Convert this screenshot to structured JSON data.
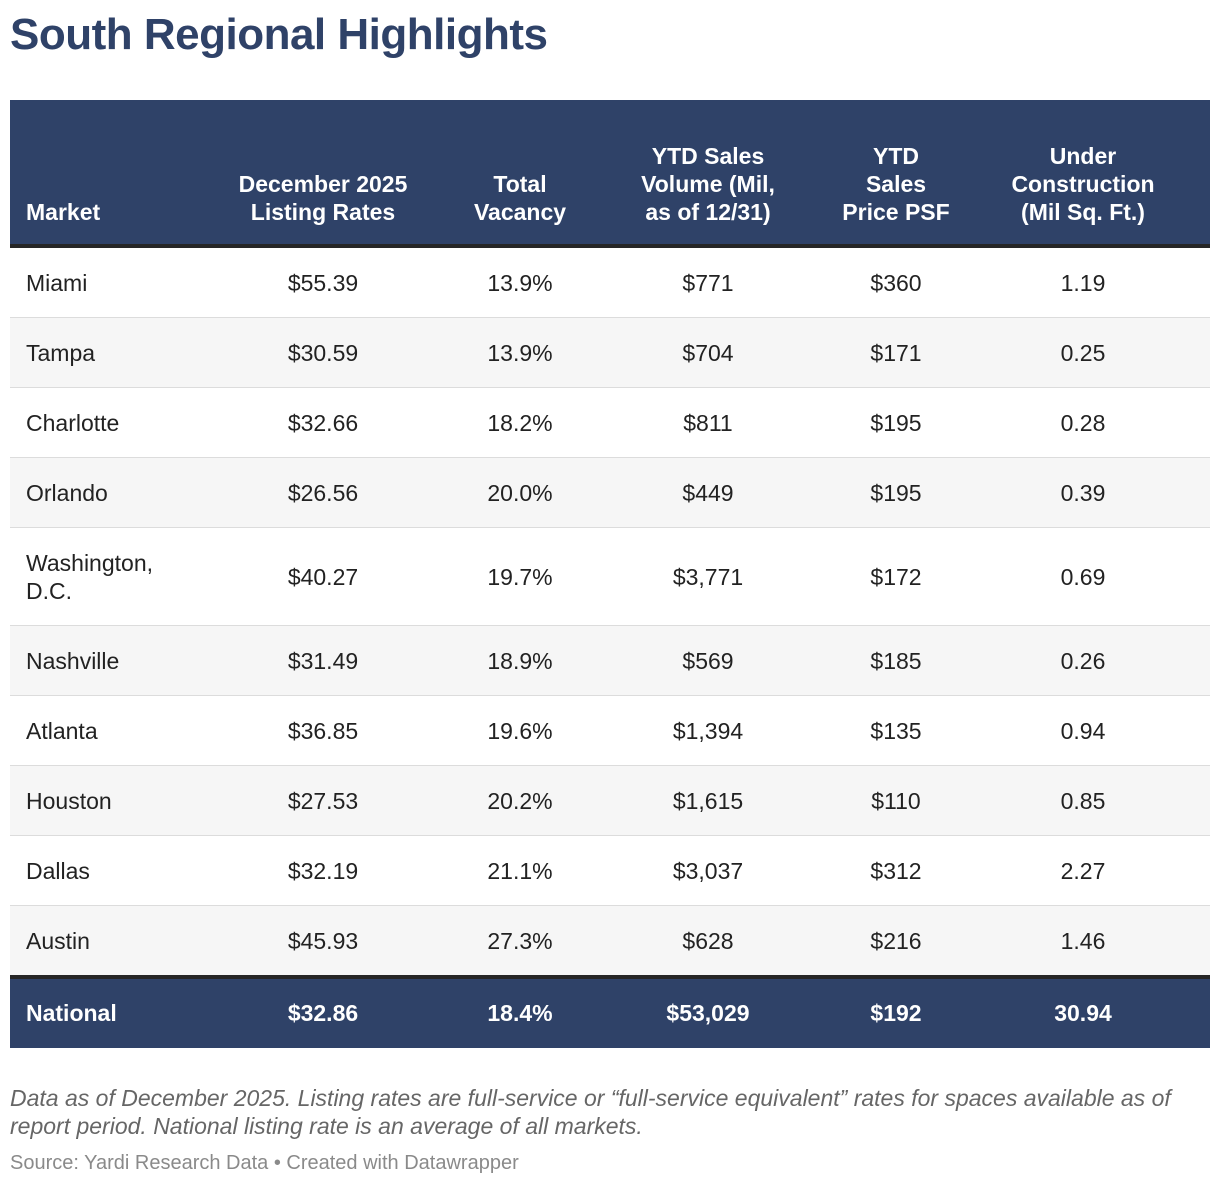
{
  "title": "South Regional Highlights",
  "chart_data": {
    "type": "table",
    "title": "South Regional Highlights",
    "columns": [
      "Market",
      "December 2025 Listing Rates",
      "Total Vacancy",
      "YTD Sales Volume (Mil, as of 12/31)",
      "YTD Sales Price PSF",
      "Under Construction (Mil Sq. Ft.)"
    ],
    "rows": [
      [
        "Miami",
        "$55.39",
        "13.9%",
        "$771",
        "$360",
        "1.19"
      ],
      [
        "Tampa",
        "$30.59",
        "13.9%",
        "$704",
        "$171",
        "0.25"
      ],
      [
        "Charlotte",
        "$32.66",
        "18.2%",
        "$811",
        "$195",
        "0.28"
      ],
      [
        "Orlando",
        "$26.56",
        "20.0%",
        "$449",
        "$195",
        "0.39"
      ],
      [
        "Washington, D.C.",
        "$40.27",
        "19.7%",
        "$3,771",
        "$172",
        "0.69"
      ],
      [
        "Nashville",
        "$31.49",
        "18.9%",
        "$569",
        "$185",
        "0.26"
      ],
      [
        "Atlanta",
        "$36.85",
        "19.6%",
        "$1,394",
        "$135",
        "0.94"
      ],
      [
        "Houston",
        "$27.53",
        "20.2%",
        "$1,615",
        "$110",
        "0.85"
      ],
      [
        "Dallas",
        "$32.19",
        "21.1%",
        "$3,037",
        "$312",
        "2.27"
      ],
      [
        "Austin",
        "$45.93",
        "27.3%",
        "$628",
        "$216",
        "1.46"
      ]
    ],
    "total_row": [
      "National",
      "$32.86",
      "18.4%",
      "$53,029",
      "$192",
      "30.94"
    ]
  },
  "note": "Data as of December 2025. Listing rates are full-service or “full-service equivalent” rates for spaces available as of report period. National listing rate is an average of all markets.",
  "source": "Source: Yardi Research Data • Created with Datawrapper",
  "colors": {
    "header_bg": "#2f4268",
    "title": "#2f4268",
    "row_alt": "#f6f6f6"
  }
}
